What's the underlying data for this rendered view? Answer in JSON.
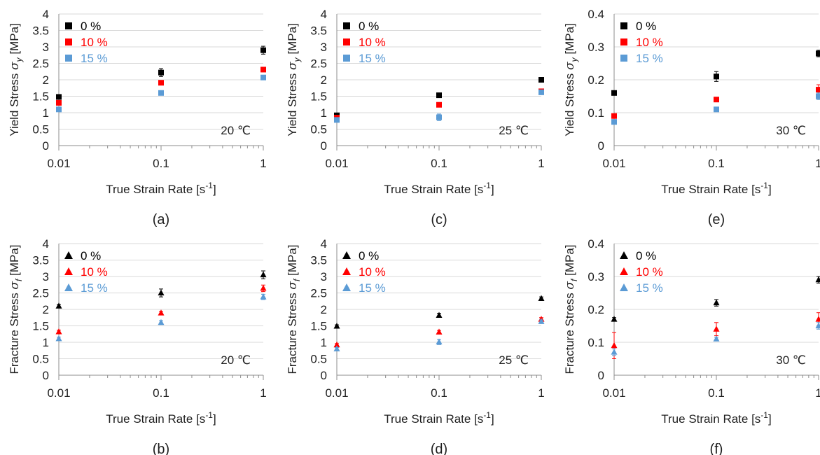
{
  "chart_data": [
    {
      "type": "scatter",
      "panel_label": "(a)",
      "marker": "square",
      "temperature_label": "20 ℃",
      "ylabel_text": "Yield Stress ",
      "ylabel_symbol": "σ",
      "ylabel_sub": "y",
      "ylabel_unit": " [MPa]",
      "xlabel_text": "True Strain Rate [s",
      "xlabel_sup": "-1",
      "xlabel_close": "]",
      "x_scale": "log",
      "xlim": [
        0.01,
        1
      ],
      "xticks": [
        "0.01",
        "0.1",
        "1"
      ],
      "ylim": [
        0,
        4
      ],
      "yticks": [
        "0",
        "0.5",
        "1",
        "1.5",
        "2",
        "2.5",
        "3",
        "3.5",
        "4"
      ],
      "grid": "horizontal",
      "legend": "top-left",
      "x": [
        0.01,
        0.1,
        1
      ],
      "series": [
        {
          "name": "0 %",
          "color": "#000000",
          "values": [
            1.48,
            2.22,
            2.9
          ],
          "errors": [
            0.05,
            0.12,
            0.12
          ]
        },
        {
          "name": "10 %",
          "color": "#ff0000",
          "values": [
            1.3,
            1.91,
            2.31
          ],
          "errors": [
            0.04,
            0.05,
            0.05
          ]
        },
        {
          "name": "15 %",
          "color": "#5b9bd5",
          "values": [
            1.1,
            1.6,
            2.07
          ],
          "errors": [
            0.04,
            0.04,
            0.05
          ]
        }
      ]
    },
    {
      "type": "scatter",
      "panel_label": "(b)",
      "marker": "triangle",
      "temperature_label": "20 ℃",
      "ylabel_text": "Fracture Stress ",
      "ylabel_symbol": "σ",
      "ylabel_sub": "f",
      "ylabel_unit": " [MPa]",
      "xlabel_text": "True Strain Rate [s",
      "xlabel_sup": "-1",
      "xlabel_close": "]",
      "x_scale": "log",
      "xlim": [
        0.01,
        1
      ],
      "xticks": [
        "0.01",
        "0.1",
        "1"
      ],
      "ylim": [
        0,
        4
      ],
      "yticks": [
        "0",
        "0.5",
        "1",
        "1.5",
        "2",
        "2.5",
        "3",
        "3.5",
        "4"
      ],
      "grid": "horizontal",
      "legend": "top-left",
      "x": [
        0.01,
        0.1,
        1
      ],
      "series": [
        {
          "name": "0 %",
          "color": "#000000",
          "values": [
            2.1,
            2.5,
            3.05
          ],
          "errors": [
            0.05,
            0.12,
            0.12
          ]
        },
        {
          "name": "10 %",
          "color": "#ff0000",
          "values": [
            1.32,
            1.89,
            2.64
          ],
          "errors": [
            0.05,
            0.05,
            0.1
          ]
        },
        {
          "name": "15 %",
          "color": "#5b9bd5",
          "values": [
            1.11,
            1.6,
            2.38
          ],
          "errors": [
            0.05,
            0.06,
            0.08
          ]
        }
      ]
    },
    {
      "type": "scatter",
      "panel_label": "(c)",
      "marker": "square",
      "temperature_label": "25 ℃",
      "ylabel_text": "Yield Stress ",
      "ylabel_symbol": "σ",
      "ylabel_sub": "y",
      "ylabel_unit": " [MPa]",
      "xlabel_text": "True Strain Rate [s",
      "xlabel_sup": "-1",
      "xlabel_close": "]",
      "x_scale": "log",
      "xlim": [
        0.01,
        1
      ],
      "xticks": [
        "0.01",
        "0.1",
        "1"
      ],
      "ylim": [
        0,
        4
      ],
      "yticks": [
        "0",
        "0.5",
        "1",
        "1.5",
        "2",
        "2.5",
        "3",
        "3.5",
        "4"
      ],
      "grid": "horizontal",
      "legend": "top-left",
      "x": [
        0.01,
        0.1,
        1
      ],
      "series": [
        {
          "name": "0 %",
          "color": "#000000",
          "values": [
            0.92,
            1.53,
            2.0
          ],
          "errors": [
            0.04,
            0.05,
            0.05
          ]
        },
        {
          "name": "10 %",
          "color": "#ff0000",
          "values": [
            0.85,
            1.24,
            1.65
          ],
          "errors": [
            0.04,
            0.04,
            0.05
          ]
        },
        {
          "name": "15 %",
          "color": "#5b9bd5",
          "values": [
            0.78,
            0.86,
            1.62
          ],
          "errors": [
            0.04,
            0.1,
            0.05
          ]
        }
      ]
    },
    {
      "type": "scatter",
      "panel_label": "(d)",
      "marker": "triangle",
      "temperature_label": "25 ℃",
      "ylabel_text": "Fracture Stress ",
      "ylabel_symbol": "σ",
      "ylabel_sub": "f",
      "ylabel_unit": " [MPa]",
      "xlabel_text": "True Strain Rate [s",
      "xlabel_sup": "-1",
      "xlabel_close": "]",
      "x_scale": "log",
      "xlim": [
        0.01,
        1
      ],
      "xticks": [
        "0.01",
        "0.1",
        "1"
      ],
      "ylim": [
        0,
        4
      ],
      "yticks": [
        "0",
        "0.5",
        "1",
        "1.5",
        "2",
        "2.5",
        "3",
        "3.5",
        "4"
      ],
      "grid": "horizontal",
      "legend": "top-left",
      "x": [
        0.01,
        0.1,
        1
      ],
      "series": [
        {
          "name": "0 %",
          "color": "#000000",
          "values": [
            1.49,
            1.82,
            2.33
          ],
          "errors": [
            0.04,
            0.06,
            0.05
          ]
        },
        {
          "name": "10 %",
          "color": "#ff0000",
          "values": [
            0.92,
            1.31,
            1.7
          ],
          "errors": [
            0.04,
            0.05,
            0.05
          ]
        },
        {
          "name": "15 %",
          "color": "#5b9bd5",
          "values": [
            0.8,
            1.01,
            1.63
          ],
          "errors": [
            0.04,
            0.08,
            0.05
          ]
        }
      ]
    },
    {
      "type": "scatter",
      "panel_label": "(e)",
      "marker": "square",
      "temperature_label": "30 ℃",
      "ylabel_text": "Yield Stress ",
      "ylabel_symbol": "σ",
      "ylabel_sub": "y",
      "ylabel_unit": " [MPa]",
      "xlabel_text": "True Strain Rate [s",
      "xlabel_sup": "-1",
      "xlabel_close": "]",
      "x_scale": "log",
      "xlim": [
        0.01,
        1
      ],
      "xticks": [
        "0.01",
        "0.1",
        "1"
      ],
      "ylim": [
        0,
        0.4
      ],
      "yticks": [
        "0",
        "0.1",
        "0.2",
        "0.3",
        "0.4"
      ],
      "grid": "horizontal",
      "legend": "top-left",
      "x": [
        0.01,
        0.1,
        1
      ],
      "series": [
        {
          "name": "0 %",
          "color": "#000000",
          "values": [
            0.16,
            0.21,
            0.28
          ],
          "errors": [
            0.005,
            0.015,
            0.01
          ]
        },
        {
          "name": "10 %",
          "color": "#ff0000",
          "values": [
            0.09,
            0.14,
            0.17
          ],
          "errors": [
            0.005,
            0.005,
            0.015
          ]
        },
        {
          "name": "15 %",
          "color": "#5b9bd5",
          "values": [
            0.072,
            0.11,
            0.15
          ],
          "errors": [
            0.005,
            0.005,
            0.01
          ]
        }
      ]
    },
    {
      "type": "scatter",
      "panel_label": "(f)",
      "marker": "triangle",
      "temperature_label": "30 ℃",
      "ylabel_text": "Fracture Stress ",
      "ylabel_symbol": "σ",
      "ylabel_sub": "f",
      "ylabel_unit": " [MPa]",
      "xlabel_text": "True Strain Rate [s",
      "xlabel_sup": "-1",
      "xlabel_close": "]",
      "x_scale": "log",
      "xlim": [
        0.01,
        1
      ],
      "xticks": [
        "0.01",
        "0.1",
        "1"
      ],
      "ylim": [
        0,
        0.4
      ],
      "yticks": [
        "0",
        "0.1",
        "0.2",
        "0.3",
        "0.4"
      ],
      "grid": "horizontal",
      "legend": "top-left",
      "x": [
        0.01,
        0.1,
        1
      ],
      "series": [
        {
          "name": "0 %",
          "color": "#000000",
          "values": [
            0.17,
            0.22,
            0.29
          ],
          "errors": [
            0.005,
            0.01,
            0.01
          ]
        },
        {
          "name": "10 %",
          "color": "#ff0000",
          "values": [
            0.09,
            0.14,
            0.17
          ],
          "errors": [
            0.04,
            0.02,
            0.02
          ]
        },
        {
          "name": "15 %",
          "color": "#5b9bd5",
          "values": [
            0.07,
            0.11,
            0.15
          ],
          "errors": [
            0.01,
            0.005,
            0.01
          ]
        }
      ]
    }
  ]
}
